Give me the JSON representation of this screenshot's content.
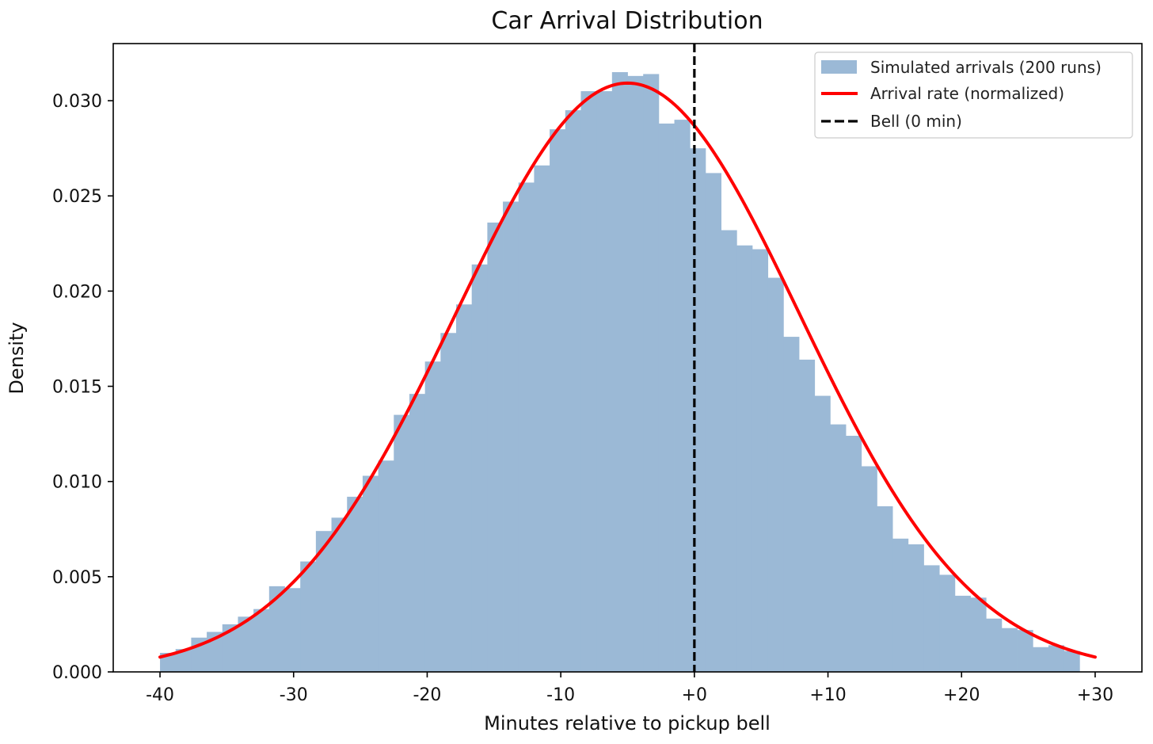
{
  "chart_data": {
    "type": "bar",
    "title": "Car Arrival Distribution",
    "xlabel": "Minutes relative to pickup bell",
    "ylabel": "Density",
    "xlim": [
      -43.5,
      33.5
    ],
    "ylim": [
      0,
      0.033
    ],
    "xticks": [
      -40,
      -30,
      -20,
      -10,
      0,
      10,
      20,
      30
    ],
    "xtick_labels": [
      "-40",
      "-30",
      "-20",
      "-10",
      "+0",
      "+10",
      "+20",
      "+30"
    ],
    "yticks": [
      0,
      0.005,
      0.01,
      0.015,
      0.02,
      0.025,
      0.03
    ],
    "ytick_labels": [
      "0.000",
      "0.005",
      "0.010",
      "0.015",
      "0.020",
      "0.025",
      "0.030"
    ],
    "grid": false,
    "legend": {
      "position": "top-right",
      "entries": [
        {
          "label": "Simulated arrivals (200 runs)",
          "kind": "patch",
          "color": "#9bb9d6"
        },
        {
          "label": "Arrival rate (normalized)",
          "kind": "line",
          "color": "#ff0000"
        },
        {
          "label": "Bell (0 min)",
          "kind": "dashed",
          "color": "#000000"
        }
      ]
    },
    "histogram": {
      "name": "Simulated arrivals (200 runs)",
      "color": "#9bb9d6",
      "bin_width": 1.1667,
      "bin_start": -40,
      "values": [
        0.001,
        0.0012,
        0.0018,
        0.0021,
        0.0025,
        0.0029,
        0.0033,
        0.0045,
        0.0044,
        0.0058,
        0.0074,
        0.0081,
        0.0092,
        0.0103,
        0.0111,
        0.0135,
        0.0146,
        0.0163,
        0.0178,
        0.0193,
        0.0214,
        0.0236,
        0.0247,
        0.0257,
        0.0266,
        0.0285,
        0.0295,
        0.0305,
        0.0305,
        0.0315,
        0.0313,
        0.0314,
        0.0288,
        0.029,
        0.0275,
        0.0262,
        0.0232,
        0.0224,
        0.0222,
        0.0207,
        0.0176,
        0.0164,
        0.0145,
        0.013,
        0.0124,
        0.0108,
        0.0087,
        0.007,
        0.0067,
        0.0056,
        0.0051,
        0.004,
        0.0039,
        0.0028,
        0.0023,
        0.0022,
        0.0013,
        0.0014,
        0.0011
      ]
    },
    "curve": {
      "name": "Arrival rate (normalized)",
      "color": "#ff0000",
      "kind": "normal",
      "mean": -5,
      "sd": 12.9,
      "x_range": [
        -40,
        30
      ]
    },
    "vline": {
      "name": "Bell (0 min)",
      "x": 0,
      "color": "#000000",
      "style": "dashed"
    }
  }
}
